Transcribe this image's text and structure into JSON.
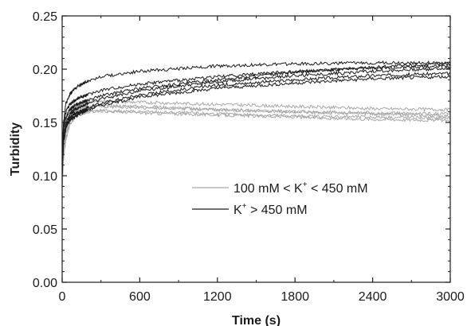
{
  "chart_data": {
    "type": "line",
    "xlabel": "Time (s)",
    "ylabel": "Turbidity",
    "xlim": [
      0,
      3000
    ],
    "ylim": [
      0.0,
      0.25
    ],
    "x_ticks": [
      0,
      600,
      1200,
      1800,
      2400,
      3000
    ],
    "y_ticks": [
      0.0,
      0.05,
      0.1,
      0.15,
      0.2,
      0.25
    ],
    "x_tick_labels": [
      "0",
      "600",
      "1200",
      "1800",
      "2400",
      "3000"
    ],
    "y_tick_labels": [
      "0.00",
      "0.05",
      "0.10",
      "0.15",
      "0.20",
      "0.25"
    ],
    "grid": false,
    "legend_position": "center-right",
    "legend": [
      {
        "parts": [
          "100 mM < K",
          "+",
          " < 450 mM"
        ],
        "color": "#a8a8a8"
      },
      {
        "parts": [
          "K",
          "+",
          " > 450 mM"
        ],
        "color": "#1a1a1a"
      }
    ],
    "series_groups": [
      {
        "color": "#a8a8a8",
        "series": [
          {
            "x": [
              0,
              10,
              30,
              60,
              100,
              150,
              200,
              300,
              600,
              1200,
              1800,
              2400,
              3000
            ],
            "y": [
              0.09,
              0.12,
              0.14,
              0.152,
              0.158,
              0.162,
              0.164,
              0.165,
              0.164,
              0.162,
              0.16,
              0.159,
              0.158
            ]
          },
          {
            "x": [
              0,
              10,
              30,
              60,
              100,
              150,
              200,
              300,
              600,
              1200,
              1800,
              2400,
              3000
            ],
            "y": [
              0.1,
              0.13,
              0.148,
              0.158,
              0.164,
              0.167,
              0.169,
              0.17,
              0.169,
              0.167,
              0.165,
              0.163,
              0.162
            ]
          },
          {
            "x": [
              0,
              10,
              30,
              60,
              100,
              150,
              200,
              300,
              600,
              1200,
              1800,
              2400,
              3000
            ],
            "y": [
              0.095,
              0.125,
              0.143,
              0.153,
              0.158,
              0.16,
              0.161,
              0.161,
              0.159,
              0.157,
              0.155,
              0.153,
              0.152
            ]
          },
          {
            "x": [
              0,
              10,
              30,
              60,
              100,
              150,
              200,
              300,
              600,
              1200,
              1800,
              2400,
              3000
            ],
            "y": [
              0.1,
              0.128,
              0.146,
              0.155,
              0.16,
              0.163,
              0.165,
              0.166,
              0.165,
              0.162,
              0.16,
              0.158,
              0.156
            ]
          },
          {
            "x": [
              0,
              10,
              30,
              60,
              100,
              150,
              200,
              300,
              600,
              1200,
              1800,
              2400,
              3000
            ],
            "y": [
              0.085,
              0.115,
              0.135,
              0.148,
              0.155,
              0.158,
              0.16,
              0.161,
              0.16,
              0.158,
              0.156,
              0.155,
              0.154
            ]
          }
        ]
      },
      {
        "color": "#1a1a1a",
        "series": [
          {
            "x": [
              0,
              10,
              30,
              60,
              100,
              150,
              200,
              300,
              600,
              1200,
              1800,
              2400,
              3000
            ],
            "y": [
              0.12,
              0.15,
              0.168,
              0.177,
              0.182,
              0.186,
              0.189,
              0.193,
              0.198,
              0.203,
              0.205,
              0.206,
              0.206
            ]
          },
          {
            "x": [
              0,
              10,
              30,
              60,
              100,
              150,
              200,
              300,
              600,
              1200,
              1800,
              2400,
              3000
            ],
            "y": [
              0.11,
              0.14,
              0.155,
              0.162,
              0.166,
              0.169,
              0.171,
              0.175,
              0.182,
              0.19,
              0.197,
              0.202,
              0.205
            ]
          },
          {
            "x": [
              0,
              10,
              30,
              60,
              100,
              150,
              200,
              300,
              600,
              1200,
              1800,
              2400,
              3000
            ],
            "y": [
              0.105,
              0.135,
              0.15,
              0.158,
              0.162,
              0.165,
              0.168,
              0.172,
              0.18,
              0.188,
              0.194,
              0.198,
              0.201
            ]
          },
          {
            "x": [
              0,
              10,
              30,
              60,
              100,
              150,
              200,
              300,
              600,
              1200,
              1800,
              2400,
              3000
            ],
            "y": [
              0.1,
              0.132,
              0.147,
              0.154,
              0.158,
              0.161,
              0.164,
              0.168,
              0.176,
              0.185,
              0.19,
              0.194,
              0.196
            ]
          },
          {
            "x": [
              0,
              10,
              30,
              60,
              100,
              150,
              200,
              300,
              600,
              1200,
              1800,
              2400,
              3000
            ],
            "y": [
              0.1,
              0.13,
              0.145,
              0.152,
              0.156,
              0.159,
              0.162,
              0.166,
              0.174,
              0.182,
              0.187,
              0.191,
              0.193
            ]
          },
          {
            "x": [
              0,
              10,
              30,
              60,
              100,
              150,
              200,
              300,
              600,
              1200,
              1800,
              2400,
              3000
            ],
            "y": [
              0.115,
              0.145,
              0.16,
              0.167,
              0.171,
              0.174,
              0.176,
              0.18,
              0.186,
              0.193,
              0.198,
              0.201,
              0.203
            ]
          }
        ]
      }
    ]
  }
}
